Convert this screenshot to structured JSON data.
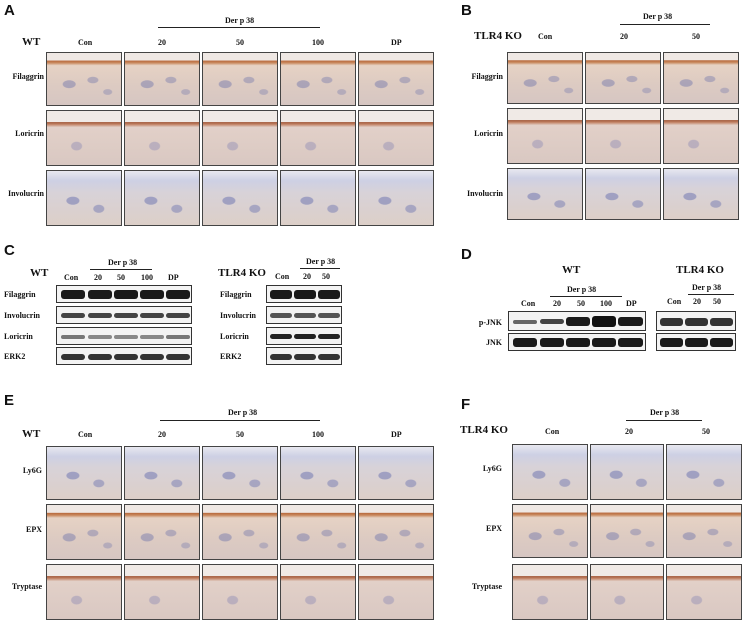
{
  "panels": {
    "A": {
      "letter": "A",
      "group": "WT",
      "treatment": "Der p 38",
      "columns": [
        "Con",
        "20",
        "50",
        "100",
        "DP"
      ],
      "rows": [
        "Filaggrin",
        "Loricrin",
        "Involucrin"
      ]
    },
    "B": {
      "letter": "B",
      "group": "TLR4 KO",
      "treatment": "Der p 38",
      "columns": [
        "Con",
        "20",
        "50"
      ],
      "rows": [
        "Filaggrin",
        "Loricrin",
        "Involucrin"
      ]
    },
    "C": {
      "letter": "C",
      "wt": {
        "group": "WT",
        "treatment": "Der p 38",
        "columns": [
          "Con",
          "20",
          "50",
          "100",
          "DP"
        ],
        "rows": [
          "Filaggrin",
          "Involucrin",
          "Loricrin",
          "ERK2"
        ]
      },
      "ko": {
        "group": "TLR4 KO",
        "treatment": "Der p 38",
        "columns": [
          "Con",
          "20",
          "50"
        ],
        "rows": [
          "Filaggrin",
          "Involucrin",
          "Loricrin",
          "ERK2"
        ]
      }
    },
    "D": {
      "letter": "D",
      "wt": {
        "group": "WT",
        "treatment": "Der p 38",
        "columns": [
          "Con",
          "20",
          "50",
          "100",
          "DP"
        ]
      },
      "ko": {
        "group": "TLR4 KO",
        "treatment": "Der p 38",
        "columns": [
          "Con",
          "20",
          "50"
        ]
      },
      "rows": [
        "p-JNK",
        "JNK"
      ]
    },
    "E": {
      "letter": "E",
      "group": "WT",
      "treatment": "Der p 38",
      "columns": [
        "Con",
        "20",
        "50",
        "100",
        "DP"
      ],
      "rows": [
        "Ly6G",
        "EPX",
        "Tryptase"
      ]
    },
    "F": {
      "letter": "F",
      "group": "TLR4 KO",
      "treatment": "Der p 38",
      "columns": [
        "Con",
        "20",
        "50"
      ],
      "rows": [
        "Ly6G",
        "EPX",
        "Tryptase"
      ]
    }
  }
}
